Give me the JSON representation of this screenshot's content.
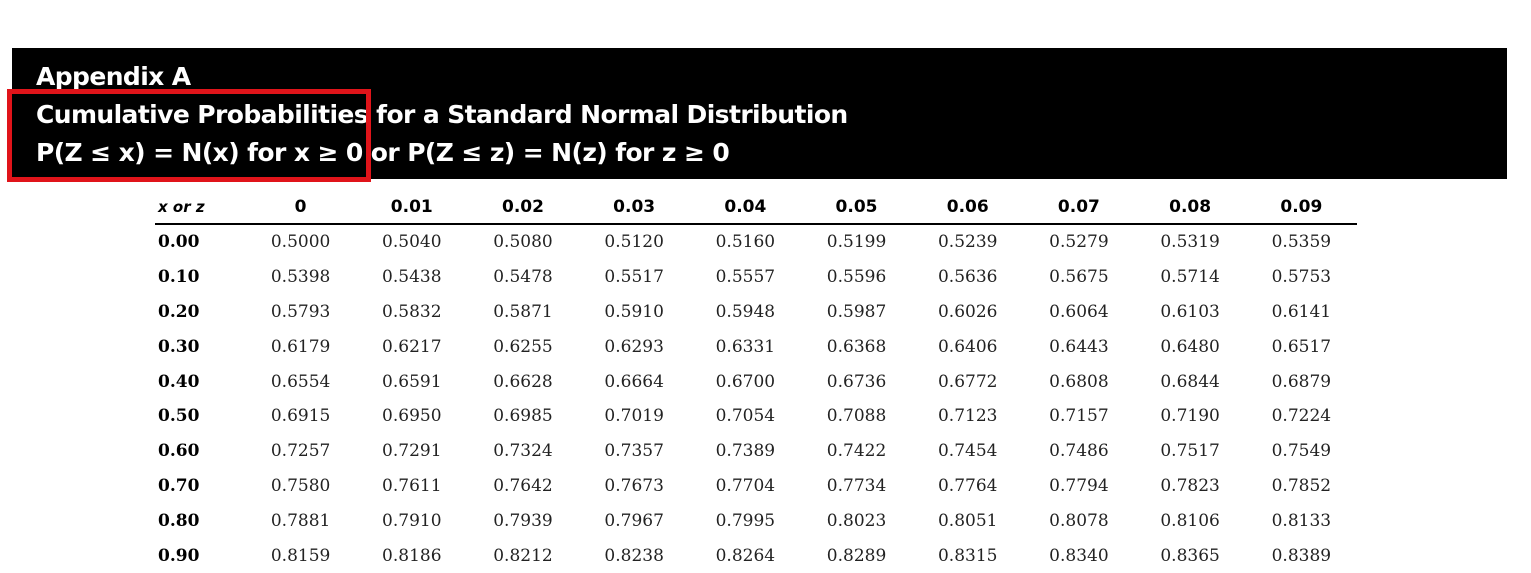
{
  "header": {
    "line1": "Appendix A",
    "line2": "Cumulative Probabilities for a Standard Normal Distribution",
    "line3": "P(Z ≤ x) = N(x) for x ≥ 0 or P(Z ≤ z) = N(z) for z ≥ 0"
  },
  "highlight": {
    "color": "#e0141a"
  },
  "table": {
    "headers": [
      "x or z",
      "0",
      "0.01",
      "0.02",
      "0.03",
      "0.04",
      "0.05",
      "0.06",
      "0.07",
      "0.08",
      "0.09"
    ],
    "rows": [
      [
        "0.00",
        "0.5000",
        "0.5040",
        "0.5080",
        "0.5120",
        "0.5160",
        "0.5199",
        "0.5239",
        "0.5279",
        "0.5319",
        "0.5359"
      ],
      [
        "0.10",
        "0.5398",
        "0.5438",
        "0.5478",
        "0.5517",
        "0.5557",
        "0.5596",
        "0.5636",
        "0.5675",
        "0.5714",
        "0.5753"
      ],
      [
        "0.20",
        "0.5793",
        "0.5832",
        "0.5871",
        "0.5910",
        "0.5948",
        "0.5987",
        "0.6026",
        "0.6064",
        "0.6103",
        "0.6141"
      ],
      [
        "0.30",
        "0.6179",
        "0.6217",
        "0.6255",
        "0.6293",
        "0.6331",
        "0.6368",
        "0.6406",
        "0.6443",
        "0.6480",
        "0.6517"
      ],
      [
        "0.40",
        "0.6554",
        "0.6591",
        "0.6628",
        "0.6664",
        "0.6700",
        "0.6736",
        "0.6772",
        "0.6808",
        "0.6844",
        "0.6879"
      ],
      [
        "0.50",
        "0.6915",
        "0.6950",
        "0.6985",
        "0.7019",
        "0.7054",
        "0.7088",
        "0.7123",
        "0.7157",
        "0.7190",
        "0.7224"
      ],
      [
        "0.60",
        "0.7257",
        "0.7291",
        "0.7324",
        "0.7357",
        "0.7389",
        "0.7422",
        "0.7454",
        "0.7486",
        "0.7517",
        "0.7549"
      ],
      [
        "0.70",
        "0.7580",
        "0.7611",
        "0.7642",
        "0.7673",
        "0.7704",
        "0.7734",
        "0.7764",
        "0.7794",
        "0.7823",
        "0.7852"
      ],
      [
        "0.80",
        "0.7881",
        "0.7910",
        "0.7939",
        "0.7967",
        "0.7995",
        "0.8023",
        "0.8051",
        "0.8078",
        "0.8106",
        "0.8133"
      ],
      [
        "0.90",
        "0.8159",
        "0.8186",
        "0.8212",
        "0.8238",
        "0.8264",
        "0.8289",
        "0.8315",
        "0.8340",
        "0.8365",
        "0.8389"
      ]
    ]
  }
}
